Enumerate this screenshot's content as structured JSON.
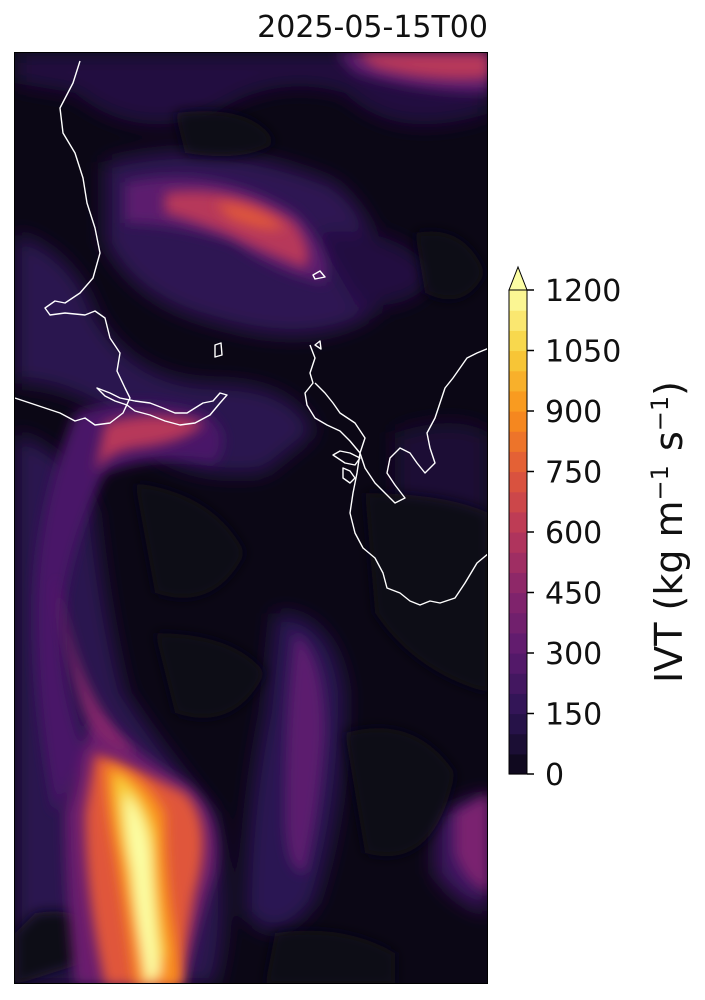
{
  "title": "2025-05-15T00",
  "colorbar": {
    "label": "IVT (kg m",
    "label_sup1": "−1",
    "label_mid": "s",
    "label_sup2": "−1",
    "label_end": ")",
    "ticks": [
      "0",
      "150",
      "300",
      "450",
      "600",
      "750",
      "900",
      "1050",
      "1200"
    ],
    "min": 0,
    "max": 1200,
    "extend": "max",
    "colormap": "inferno"
  },
  "colors": {
    "level_0": "#0b0715",
    "level_150": "#2b1452",
    "level_300": "#5b1a6e",
    "level_450": "#86256b",
    "level_600": "#b7375a",
    "level_750": "#e0573a",
    "level_900": "#f9901a",
    "level_1050": "#f7d03c",
    "level_1200": "#fcfea4",
    "coastline": "#ffffff"
  }
}
